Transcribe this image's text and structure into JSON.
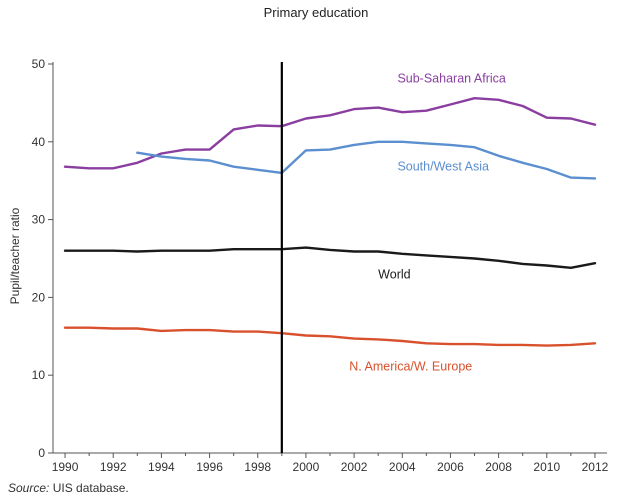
{
  "chart_data": {
    "type": "line",
    "title": "Primary education",
    "xlabel": "",
    "ylabel": "Pupil/teacher ratio",
    "xlim": [
      1989.5,
      2012.5
    ],
    "ylim": [
      0,
      50
    ],
    "yticks": [
      0,
      10,
      20,
      30,
      40,
      50
    ],
    "xticks": [
      1990,
      1992,
      1994,
      1996,
      1998,
      2000,
      2002,
      2004,
      2006,
      2008,
      2010,
      2012
    ],
    "grid": false,
    "legend": "inline labels",
    "marker_line": {
      "x": 1999
    },
    "series": [
      {
        "name": "Sub-Saharan Africa",
        "color": "#8a3ea0",
        "x": [
          1990,
          1991,
          1992,
          1993,
          1994,
          1995,
          1996,
          1997,
          1998,
          1999,
          2000,
          2001,
          2002,
          2003,
          2004,
          2005,
          2006,
          2007,
          2008,
          2009,
          2010,
          2011,
          2012
        ],
        "values": [
          36.8,
          36.6,
          36.6,
          37.3,
          38.5,
          39.0,
          39.0,
          41.6,
          42.1,
          42.0,
          43.0,
          43.4,
          44.2,
          44.4,
          43.8,
          44.0,
          44.8,
          45.6,
          45.4,
          44.6,
          43.1,
          43.0,
          42.2
        ],
        "label_pos": {
          "x": 2003.8,
          "y": 47.6
        }
      },
      {
        "name": "South/West Asia",
        "color": "#5b8fd0",
        "x": [
          1993,
          1994,
          1995,
          1996,
          1997,
          1998,
          1999,
          2000,
          2001,
          2002,
          2003,
          2004,
          2005,
          2006,
          2007,
          2008,
          2009,
          2010,
          2011,
          2012
        ],
        "values": [
          38.6,
          38.1,
          37.8,
          37.6,
          36.8,
          36.4,
          36.0,
          38.9,
          39.0,
          39.6,
          40.0,
          40.0,
          39.8,
          39.6,
          39.3,
          38.2,
          37.3,
          36.5,
          35.4,
          35.3
        ],
        "label_pos": {
          "x": 2003.8,
          "y": 36.3
        }
      },
      {
        "name": "World",
        "color": "#1a1a1a",
        "x": [
          1990,
          1991,
          1992,
          1993,
          1994,
          1995,
          1996,
          1997,
          1998,
          1999,
          2000,
          2001,
          2002,
          2003,
          2004,
          2005,
          2006,
          2007,
          2008,
          2009,
          2010,
          2011,
          2012
        ],
        "values": [
          26.0,
          26.0,
          26.0,
          25.9,
          26.0,
          26.0,
          26.0,
          26.2,
          26.2,
          26.2,
          26.4,
          26.1,
          25.9,
          25.9,
          25.6,
          25.4,
          25.2,
          25.0,
          24.7,
          24.3,
          24.1,
          23.8,
          24.4
        ],
        "label_pos": {
          "x": 2003.0,
          "y": 22.4
        }
      },
      {
        "name": "N. America/W. Europe",
        "color": "#d9512c",
        "x": [
          1990,
          1991,
          1992,
          1993,
          1994,
          1995,
          1996,
          1997,
          1998,
          1999,
          2000,
          2001,
          2002,
          2003,
          2004,
          2005,
          2006,
          2007,
          2008,
          2009,
          2010,
          2011,
          2012
        ],
        "values": [
          16.1,
          16.1,
          16.0,
          16.0,
          15.7,
          15.8,
          15.8,
          15.6,
          15.6,
          15.4,
          15.1,
          15.0,
          14.7,
          14.6,
          14.4,
          14.1,
          14.0,
          14.0,
          13.9,
          13.9,
          13.8,
          13.9,
          14.1
        ],
        "label_pos": {
          "x": 2001.8,
          "y": 10.6
        }
      }
    ]
  },
  "source": {
    "prefix": "Source:",
    "text": " UIS database."
  }
}
